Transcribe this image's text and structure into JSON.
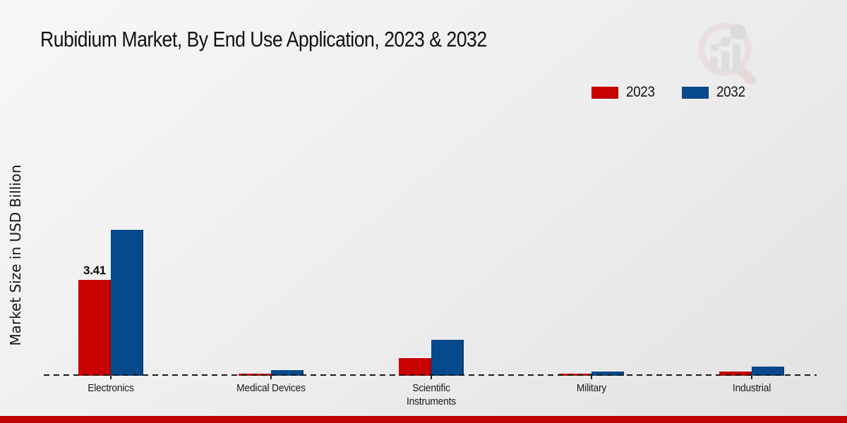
{
  "chart_data": {
    "type": "bar",
    "title": "Rubidium Market, By End Use Application, 2023 & 2032",
    "xlabel": "",
    "ylabel": "Market Size in USD Billion",
    "categories": [
      "Electronics",
      "Medical Devices",
      "Scientific Instruments",
      "Military",
      "Industrial"
    ],
    "series": [
      {
        "name": "2023",
        "color": "#c80101",
        "values": [
          3.41,
          0.08,
          0.63,
          0.07,
          0.15
        ]
      },
      {
        "name": "2032",
        "color": "#06498c",
        "values": [
          5.2,
          0.2,
          1.27,
          0.15,
          0.33
        ]
      }
    ],
    "annotations": [
      {
        "series_index": 0,
        "category_index": 0,
        "text": "3.41"
      }
    ],
    "ylim": [
      0,
      5.6
    ],
    "grid": "off",
    "baseline_style": "dashed",
    "legend_position": "top-right"
  },
  "branding": {
    "watermark_icon": "magnifier-bar-chart-logo",
    "footer_stripe_color": "#c10101"
  }
}
